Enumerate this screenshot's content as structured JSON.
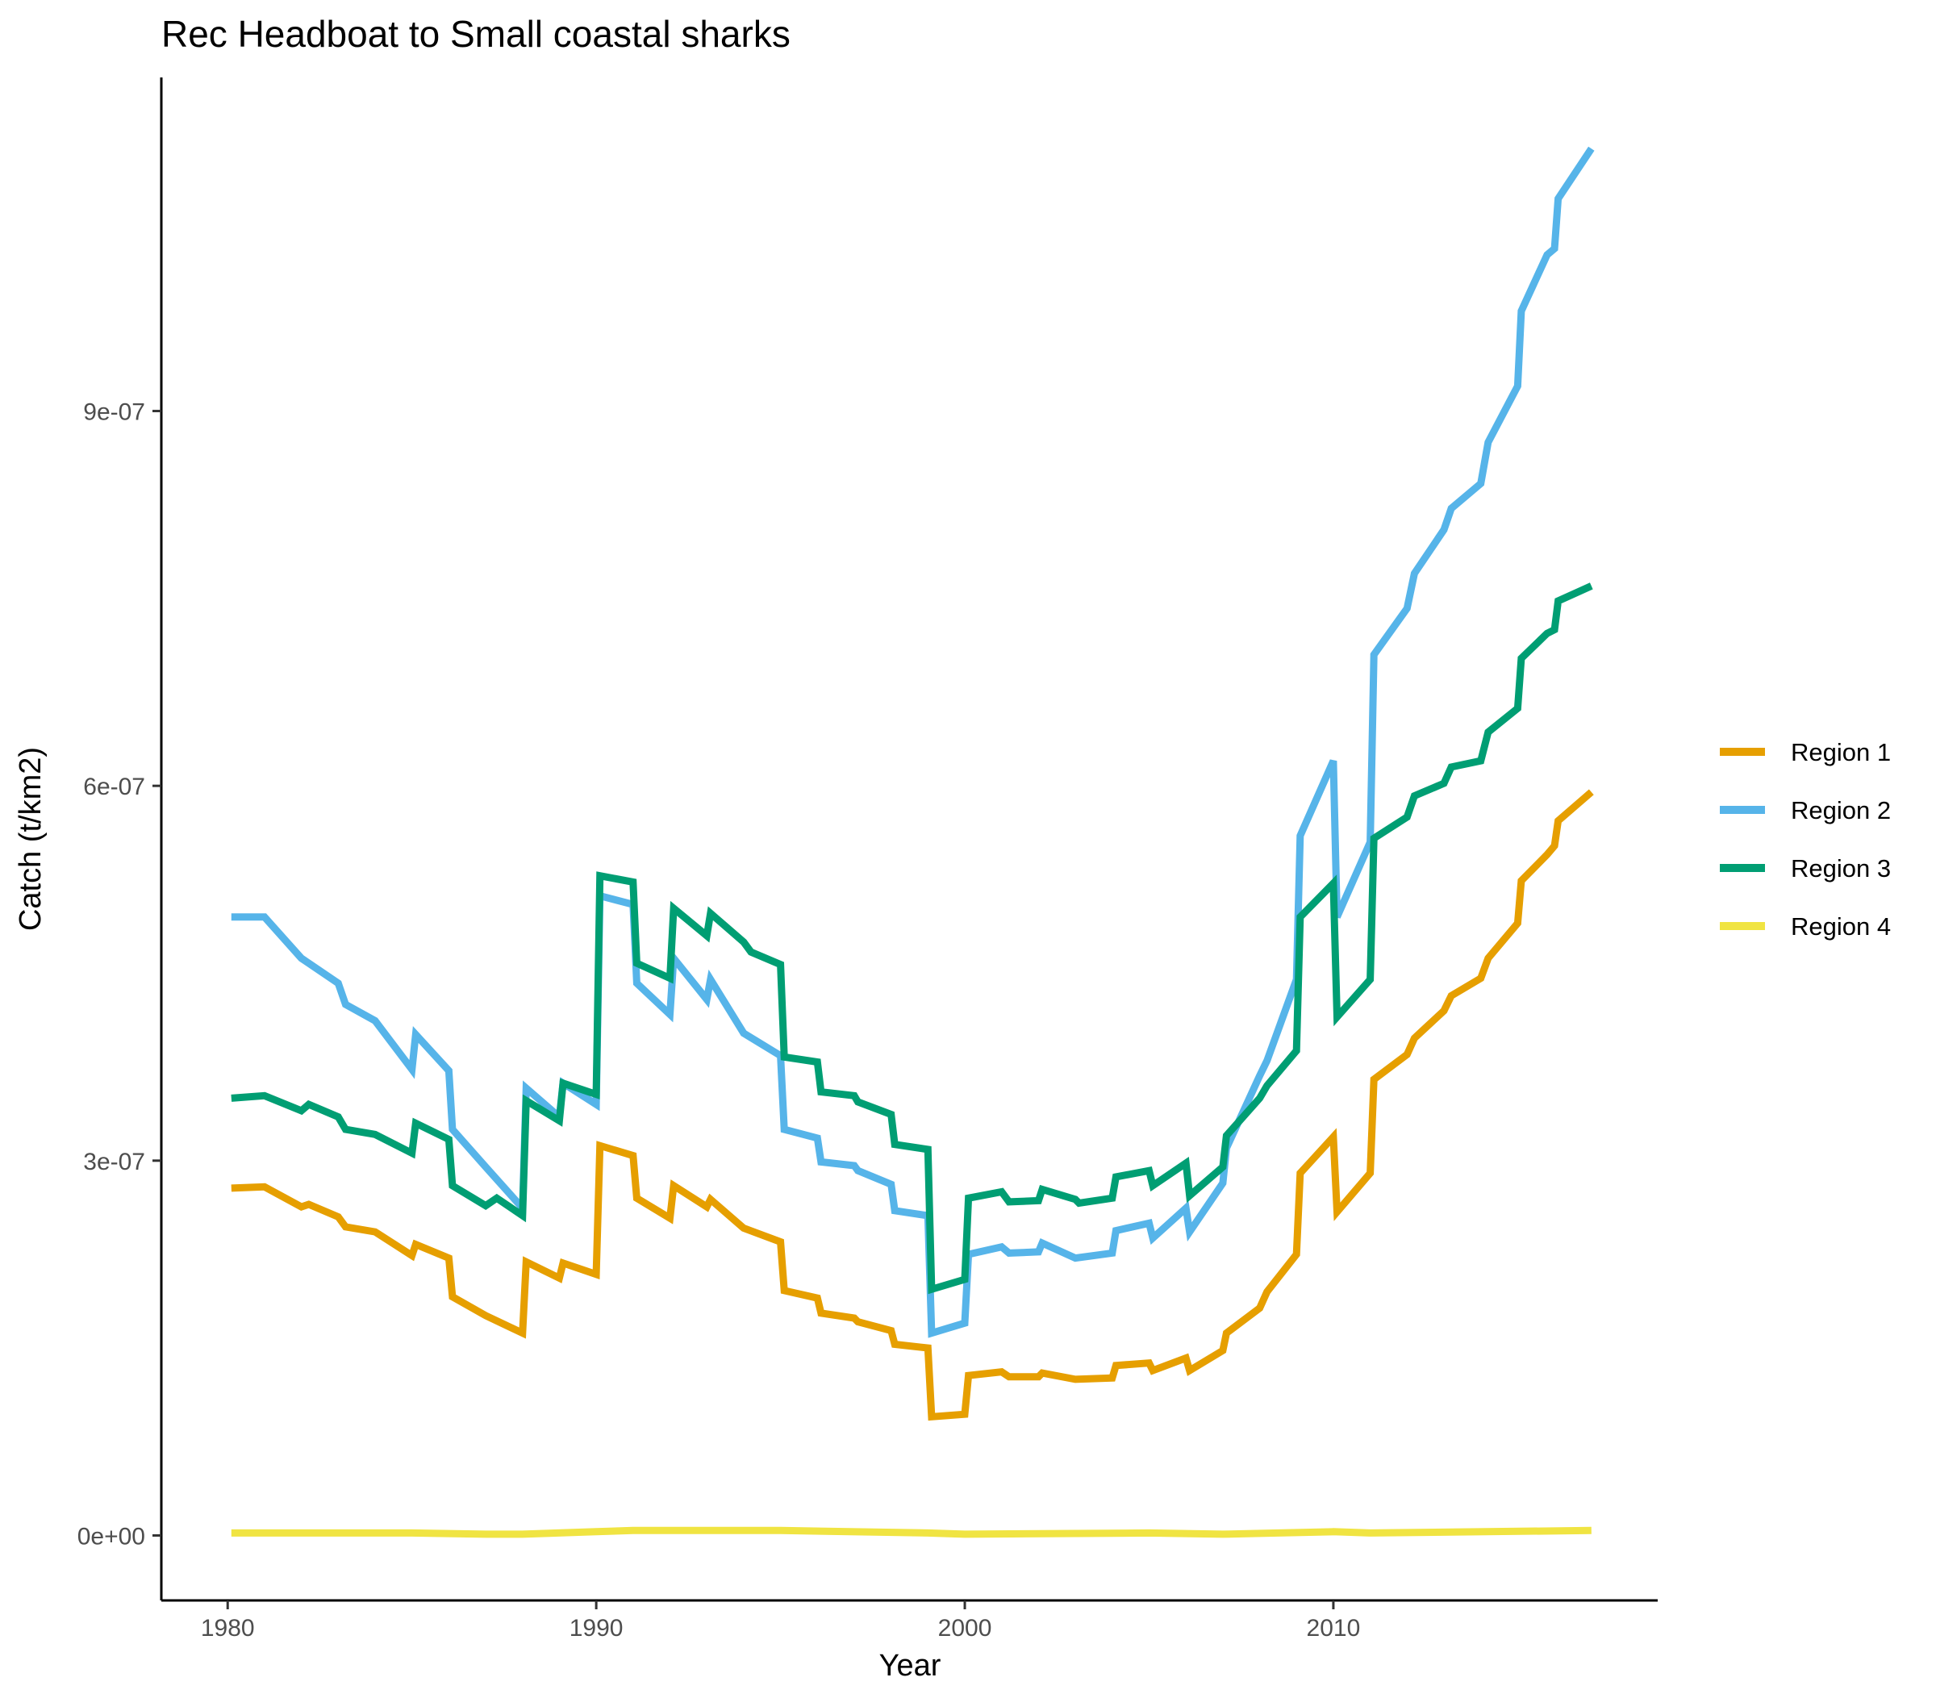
{
  "chart_data": {
    "type": "line",
    "title": "Rec Headboat to Small coastal sharks",
    "xlabel": "Year",
    "ylabel": "Catch (t/km2)",
    "xlim": [
      1978.2,
      2018.8
    ],
    "ylim": [
      -5.2e-08,
      1.167e-06
    ],
    "xticks": [
      1980,
      1990,
      2000,
      2010
    ],
    "xtick_labels": [
      "1980",
      "1990",
      "2000",
      "2010"
    ],
    "yticks": [
      0,
      3e-07,
      6e-07,
      9e-07
    ],
    "ytick_labels": [
      "0e+00",
      "3e-07",
      "6e-07",
      "9e-07"
    ],
    "grid": false,
    "legend_position": "right",
    "series": [
      {
        "name": "Region 1",
        "color": "#E69F00",
        "points": [
          [
            1980.1,
            2.78e-07
          ],
          [
            1981,
            2.79e-07
          ],
          [
            1982,
            2.63e-07
          ],
          [
            1982.2,
            2.65e-07
          ],
          [
            1983,
            2.55e-07
          ],
          [
            1983.2,
            2.47e-07
          ],
          [
            1984,
            2.43e-07
          ],
          [
            1985,
            2.24e-07
          ],
          [
            1985.1,
            2.33e-07
          ],
          [
            1986,
            2.22e-07
          ],
          [
            1986.1,
            1.91e-07
          ],
          [
            1987,
            1.76e-07
          ],
          [
            1988,
            1.62e-07
          ],
          [
            1988.1,
            2.19e-07
          ],
          [
            1989,
            2.06e-07
          ],
          [
            1989.1,
            2.18e-07
          ],
          [
            1990,
            2.09e-07
          ],
          [
            1990.1,
            3.12e-07
          ],
          [
            1991,
            3.04e-07
          ],
          [
            1991.1,
            2.7e-07
          ],
          [
            1992,
            2.54e-07
          ],
          [
            1992.1,
            2.8e-07
          ],
          [
            1993,
            2.63e-07
          ],
          [
            1993.1,
            2.69e-07
          ],
          [
            1994,
            2.46e-07
          ],
          [
            1995,
            2.35e-07
          ],
          [
            1995.1,
            1.96e-07
          ],
          [
            1996,
            1.9e-07
          ],
          [
            1996.1,
            1.78e-07
          ],
          [
            1997,
            1.74e-07
          ],
          [
            1997.1,
            1.71e-07
          ],
          [
            1998,
            1.64e-07
          ],
          [
            1998.1,
            1.53e-07
          ],
          [
            1999,
            1.5e-07
          ],
          [
            1999.1,
            9.5e-08
          ],
          [
            2000,
            9.7e-08
          ],
          [
            2000.1,
            1.28e-07
          ],
          [
            2001,
            1.31e-07
          ],
          [
            2001.2,
            1.27e-07
          ],
          [
            2002,
            1.27e-07
          ],
          [
            2002.1,
            1.3e-07
          ],
          [
            2003,
            1.25e-07
          ],
          [
            2004,
            1.26e-07
          ],
          [
            2004.1,
            1.36e-07
          ],
          [
            2005,
            1.38e-07
          ],
          [
            2005.1,
            1.32e-07
          ],
          [
            2006,
            1.42e-07
          ],
          [
            2006.1,
            1.32e-07
          ],
          [
            2007,
            1.48e-07
          ],
          [
            2007.1,
            1.62e-07
          ],
          [
            2008,
            1.82e-07
          ],
          [
            2008.2,
            1.95e-07
          ],
          [
            2009,
            2.25e-07
          ],
          [
            2009.1,
            2.9e-07
          ],
          [
            2010,
            3.19e-07
          ],
          [
            2010.1,
            2.59e-07
          ],
          [
            2011,
            2.9e-07
          ],
          [
            2011.1,
            3.65e-07
          ],
          [
            2012,
            3.85e-07
          ],
          [
            2012.2,
            3.98e-07
          ],
          [
            2013,
            4.2e-07
          ],
          [
            2013.2,
            4.32e-07
          ],
          [
            2014,
            4.46e-07
          ],
          [
            2014.2,
            4.62e-07
          ],
          [
            2015,
            4.9e-07
          ],
          [
            2015.1,
            5.24e-07
          ],
          [
            2015.8,
            5.45e-07
          ],
          [
            2016,
            5.52e-07
          ],
          [
            2016.1,
            5.72e-07
          ],
          [
            2017,
            5.95e-07
          ]
        ]
      },
      {
        "name": "Region 2",
        "color": "#56B4E9",
        "points": [
          [
            1980.1,
            4.95e-07
          ],
          [
            1981,
            4.95e-07
          ],
          [
            1982,
            4.62e-07
          ],
          [
            1982.2,
            4.58e-07
          ],
          [
            1983,
            4.42e-07
          ],
          [
            1983.2,
            4.25e-07
          ],
          [
            1984,
            4.12e-07
          ],
          [
            1985,
            3.73e-07
          ],
          [
            1985.1,
            4.01e-07
          ],
          [
            1986,
            3.72e-07
          ],
          [
            1986.1,
            3.25e-07
          ],
          [
            1987,
            2.95e-07
          ],
          [
            1988,
            2.62e-07
          ],
          [
            1988.1,
            3.58e-07
          ],
          [
            1989,
            3.35e-07
          ],
          [
            1989.1,
            3.62e-07
          ],
          [
            1990,
            3.45e-07
          ],
          [
            1990.1,
            5.12e-07
          ],
          [
            1991,
            5.05e-07
          ],
          [
            1991.1,
            4.42e-07
          ],
          [
            1992,
            4.17e-07
          ],
          [
            1992.1,
            4.62e-07
          ],
          [
            1993,
            4.29e-07
          ],
          [
            1993.1,
            4.45e-07
          ],
          [
            1994,
            4.02e-07
          ],
          [
            1995,
            3.84e-07
          ],
          [
            1995.1,
            3.25e-07
          ],
          [
            1996,
            3.18e-07
          ],
          [
            1996.1,
            2.99e-07
          ],
          [
            1997,
            2.96e-07
          ],
          [
            1997.1,
            2.92e-07
          ],
          [
            1998,
            2.81e-07
          ],
          [
            1998.1,
            2.6e-07
          ],
          [
            1999,
            2.56e-07
          ],
          [
            1999.1,
            1.62e-07
          ],
          [
            2000,
            1.7e-07
          ],
          [
            2000.1,
            2.25e-07
          ],
          [
            2001,
            2.31e-07
          ],
          [
            2001.2,
            2.26e-07
          ],
          [
            2002,
            2.27e-07
          ],
          [
            2002.1,
            2.34e-07
          ],
          [
            2003,
            2.22e-07
          ],
          [
            2004,
            2.26e-07
          ],
          [
            2004.1,
            2.44e-07
          ],
          [
            2005,
            2.5e-07
          ],
          [
            2005.1,
            2.38e-07
          ],
          [
            2006,
            2.62e-07
          ],
          [
            2006.1,
            2.43e-07
          ],
          [
            2007,
            2.82e-07
          ],
          [
            2007.1,
            3.1e-07
          ],
          [
            2008,
            3.68e-07
          ],
          [
            2008.2,
            3.8e-07
          ],
          [
            2009,
            4.45e-07
          ],
          [
            2009.1,
            5.6e-07
          ],
          [
            2010,
            6.2e-07
          ],
          [
            2010.1,
            4.95e-07
          ],
          [
            2011,
            5.55e-07
          ],
          [
            2011.1,
            7.05e-07
          ],
          [
            2012,
            7.42e-07
          ],
          [
            2012.2,
            7.7e-07
          ],
          [
            2013,
            8.05e-07
          ],
          [
            2013.2,
            8.22e-07
          ],
          [
            2014,
            8.42e-07
          ],
          [
            2014.2,
            8.75e-07
          ],
          [
            2015,
            9.2e-07
          ],
          [
            2015.1,
            9.8e-07
          ],
          [
            2015.8,
            1.025e-06
          ],
          [
            2016,
            1.03e-06
          ],
          [
            2016.1,
            1.07e-06
          ],
          [
            2017,
            1.11e-06
          ]
        ]
      },
      {
        "name": "Region 3",
        "color": "#009E73",
        "points": [
          [
            1980.1,
            3.5e-07
          ],
          [
            1981,
            3.52e-07
          ],
          [
            1982,
            3.4e-07
          ],
          [
            1982.2,
            3.45e-07
          ],
          [
            1983,
            3.35e-07
          ],
          [
            1983.2,
            3.25e-07
          ],
          [
            1984,
            3.21e-07
          ],
          [
            1985,
            3.06e-07
          ],
          [
            1985.1,
            3.3e-07
          ],
          [
            1986,
            3.17e-07
          ],
          [
            1986.1,
            2.8e-07
          ],
          [
            1987,
            2.64e-07
          ],
          [
            1987.3,
            2.7e-07
          ],
          [
            1988,
            2.56e-07
          ],
          [
            1988.1,
            3.48e-07
          ],
          [
            1989,
            3.32e-07
          ],
          [
            1989.1,
            3.62e-07
          ],
          [
            1990,
            3.53e-07
          ],
          [
            1990.1,
            5.28e-07
          ],
          [
            1991,
            5.23e-07
          ],
          [
            1991.1,
            4.58e-07
          ],
          [
            1992,
            4.46e-07
          ],
          [
            1992.1,
            5.02e-07
          ],
          [
            1993,
            4.8e-07
          ],
          [
            1993.1,
            4.98e-07
          ],
          [
            1994,
            4.75e-07
          ],
          [
            1994.2,
            4.67e-07
          ],
          [
            1995,
            4.57e-07
          ],
          [
            1995.1,
            3.83e-07
          ],
          [
            1996,
            3.79e-07
          ],
          [
            1996.1,
            3.55e-07
          ],
          [
            1997,
            3.52e-07
          ],
          [
            1997.1,
            3.47e-07
          ],
          [
            1998,
            3.37e-07
          ],
          [
            1998.1,
            3.13e-07
          ],
          [
            1999,
            3.09e-07
          ],
          [
            1999.1,
            1.97e-07
          ],
          [
            2000,
            2.05e-07
          ],
          [
            2000.1,
            2.7e-07
          ],
          [
            2001,
            2.75e-07
          ],
          [
            2001.2,
            2.67e-07
          ],
          [
            2002,
            2.68e-07
          ],
          [
            2002.1,
            2.77e-07
          ],
          [
            2003,
            2.69e-07
          ],
          [
            2003.1,
            2.66e-07
          ],
          [
            2004,
            2.7e-07
          ],
          [
            2004.1,
            2.87e-07
          ],
          [
            2005,
            2.92e-07
          ],
          [
            2005.1,
            2.8e-07
          ],
          [
            2006,
            2.98e-07
          ],
          [
            2006.1,
            2.72e-07
          ],
          [
            2007,
            2.95e-07
          ],
          [
            2007.1,
            3.2e-07
          ],
          [
            2008,
            3.5e-07
          ],
          [
            2008.2,
            3.6e-07
          ],
          [
            2009,
            3.88e-07
          ],
          [
            2009.1,
            4.95e-07
          ],
          [
            2010,
            5.22e-07
          ],
          [
            2010.1,
            4.15e-07
          ],
          [
            2011,
            4.45e-07
          ],
          [
            2011.1,
            5.58e-07
          ],
          [
            2012,
            5.75e-07
          ],
          [
            2012.2,
            5.92e-07
          ],
          [
            2013,
            6.02e-07
          ],
          [
            2013.2,
            6.15e-07
          ],
          [
            2014,
            6.2e-07
          ],
          [
            2014.2,
            6.43e-07
          ],
          [
            2015,
            6.62e-07
          ],
          [
            2015.1,
            7.02e-07
          ],
          [
            2015.8,
            7.22e-07
          ],
          [
            2016,
            7.25e-07
          ],
          [
            2016.1,
            7.48e-07
          ],
          [
            2017,
            7.6e-07
          ]
        ]
      },
      {
        "name": "Region 4",
        "color": "#F0E442",
        "points": [
          [
            1980.1,
            2e-09
          ],
          [
            1985,
            2e-09
          ],
          [
            1987,
            1e-09
          ],
          [
            1988,
            1e-09
          ],
          [
            1990,
            3e-09
          ],
          [
            1991,
            4e-09
          ],
          [
            1995,
            4e-09
          ],
          [
            1999,
            2e-09
          ],
          [
            2000,
            1e-09
          ],
          [
            2005,
            2e-09
          ],
          [
            2007,
            1e-09
          ],
          [
            2010,
            3e-09
          ],
          [
            2011,
            2e-09
          ],
          [
            2017,
            4e-09
          ]
        ]
      }
    ]
  }
}
